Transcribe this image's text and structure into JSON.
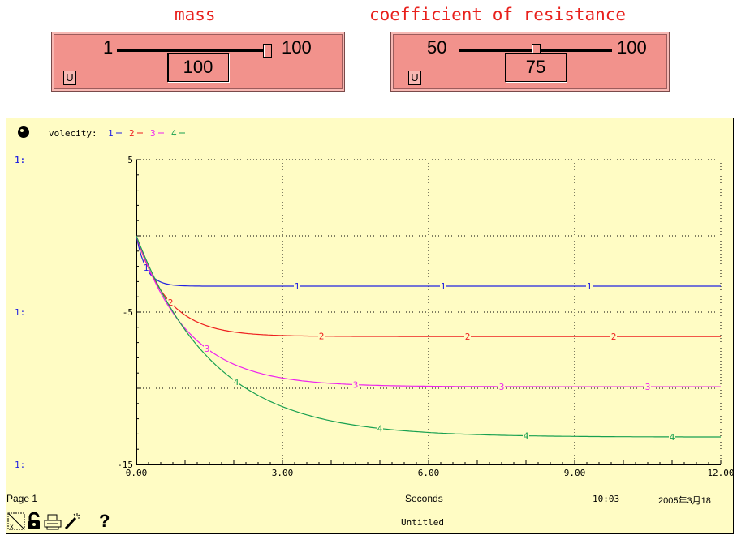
{
  "sliders": [
    {
      "title": "mass",
      "min": "1",
      "max": "100",
      "value": "100",
      "fraction": 1.0,
      "button": "U"
    },
    {
      "title": "coefficient of resistance",
      "min": "50",
      "max": "100",
      "value": "75",
      "fraction": 0.5,
      "button": "U"
    }
  ],
  "graph": {
    "page": "Page 1",
    "time": "10:03",
    "date": "2005年3月18",
    "document_title": "Untitled",
    "help": "?"
  },
  "chart_data": {
    "type": "line",
    "legend_label": "volecity:",
    "axis_prefix": "1:",
    "xlabel": "Seconds",
    "xlim": [
      0,
      12
    ],
    "ylim": [
      -15,
      5
    ],
    "xticks": [
      "0.00",
      "3.00",
      "6.00",
      "9.00",
      "12.00"
    ],
    "yticks": [
      "5",
      "-5",
      "-15"
    ],
    "grid": true,
    "series": [
      {
        "name": "1",
        "color": "#2222e0",
        "final": -3.3,
        "rate": 5.0,
        "markers": [
          0.2,
          3.3,
          6.3,
          9.3
        ]
      },
      {
        "name": "2",
        "color": "#ee2020",
        "final": -6.6,
        "rate": 1.55,
        "markers": [
          0.7,
          3.8,
          6.8,
          9.8
        ]
      },
      {
        "name": "3",
        "color": "#ee22ee",
        "final": -9.9,
        "rate": 0.95,
        "markers": [
          1.45,
          4.5,
          7.5,
          10.5
        ]
      },
      {
        "name": "4",
        "color": "#18a050",
        "final": -13.2,
        "rate": 0.63,
        "markers": [
          2.05,
          5.0,
          8.0,
          11.0
        ]
      }
    ]
  }
}
